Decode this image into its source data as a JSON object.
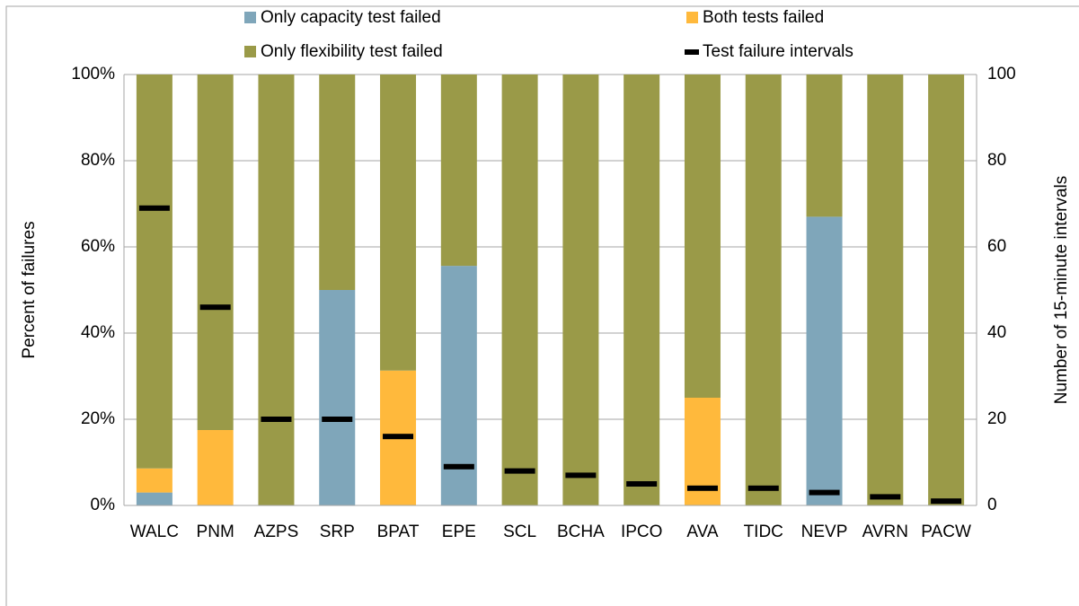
{
  "chart_data": {
    "type": "stacked-bar",
    "categories": [
      "WALC",
      "PNM",
      "AZPS",
      "SRP",
      "BPAT",
      "EPE",
      "SCL",
      "BCHA",
      "IPCO",
      "AVA",
      "TIDC",
      "NEVP",
      "AVRN",
      "PACW"
    ],
    "series": [
      {
        "name": "Only capacity test failed",
        "color": "#7fa6ba",
        "values": [
          3,
          0,
          0,
          50,
          0,
          55.6,
          0,
          0,
          0,
          0,
          0,
          67,
          0,
          0
        ]
      },
      {
        "name": "Both tests failed",
        "color": "#ffb93c",
        "values": [
          5.6,
          17.5,
          0,
          0,
          31.3,
          0,
          0,
          0,
          0,
          25,
          0,
          0,
          0,
          0
        ]
      },
      {
        "name": "Only flexibility test failed",
        "color": "#9a9a48",
        "values": [
          91.4,
          82.5,
          100,
          50,
          68.7,
          44.4,
          100,
          100,
          100,
          75,
          100,
          33,
          100,
          100
        ]
      },
      {
        "name": "Test failure intervals",
        "color": "#000000",
        "axis": "y2",
        "values": [
          69,
          46,
          20,
          20,
          16,
          9,
          8,
          7,
          5,
          4,
          4,
          3,
          2,
          1
        ]
      }
    ],
    "ylabel": "Percent of failures",
    "y2label": "Number of 15-minute intervals",
    "ylim": [
      0,
      100
    ],
    "yticks": [
      {
        "value": 0,
        "label": "0%"
      },
      {
        "value": 20,
        "label": "20%"
      },
      {
        "value": 40,
        "label": "40%"
      },
      {
        "value": 60,
        "label": "60%"
      },
      {
        "value": 80,
        "label": "80%"
      },
      {
        "value": 100,
        "label": "100%"
      }
    ],
    "y2lim": [
      0,
      100
    ],
    "y2ticks": [
      0,
      20,
      40,
      60,
      80,
      100
    ],
    "grid": true
  }
}
